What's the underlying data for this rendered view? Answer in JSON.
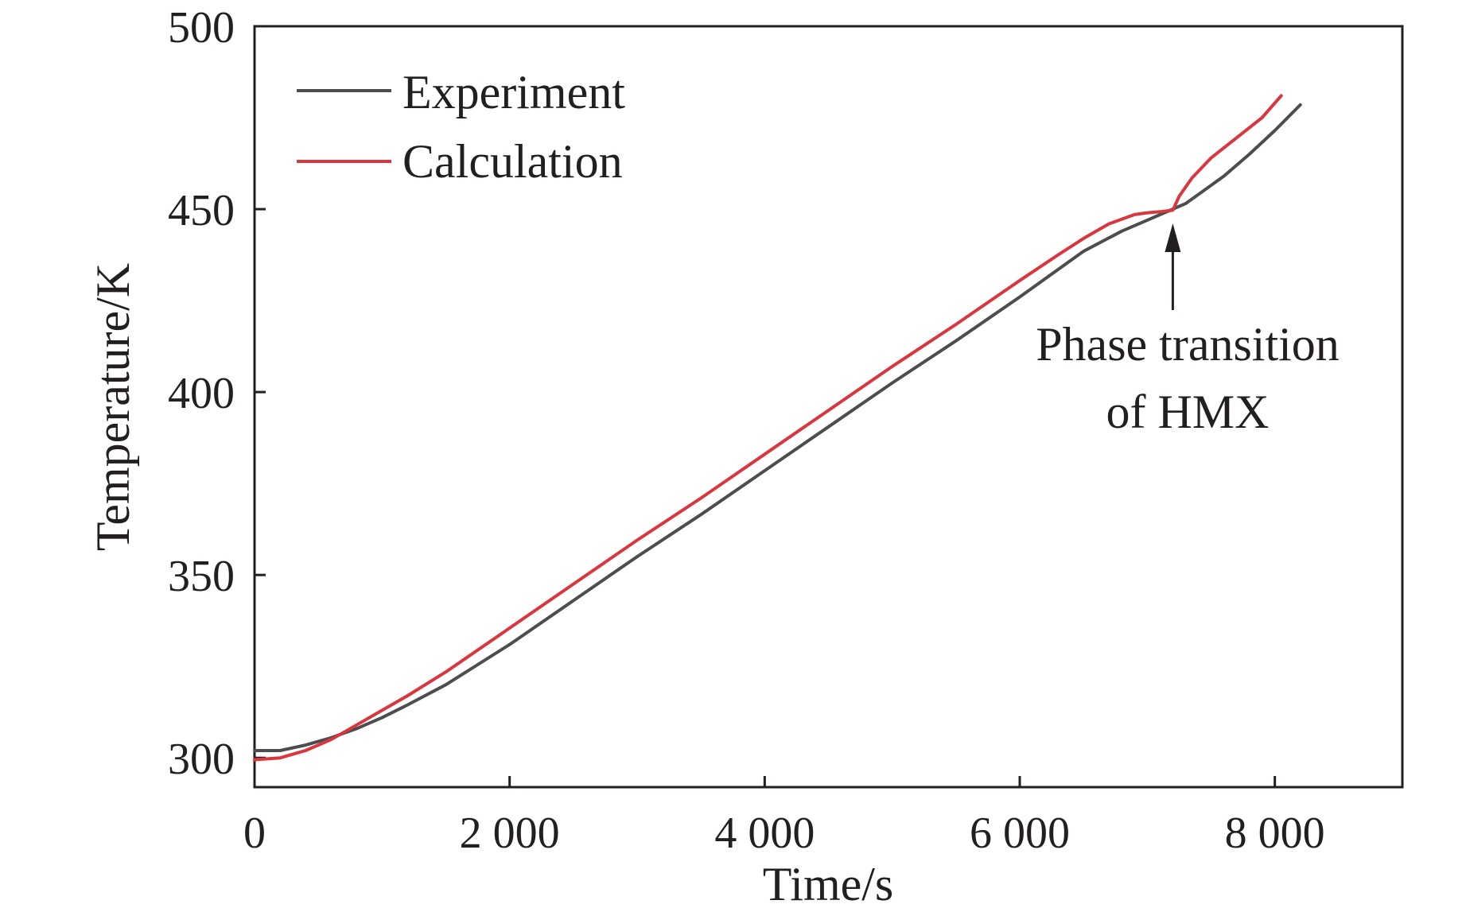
{
  "chart_data": {
    "type": "line",
    "xlabel": "Time/s",
    "ylabel": "Temperature/K",
    "xlim": [
      0,
      9000
    ],
    "ylim": [
      292,
      500
    ],
    "x_ticks": [
      {
        "value": 0,
        "label": "0"
      },
      {
        "value": 2000,
        "label": "2 000"
      },
      {
        "value": 4000,
        "label": "4 000"
      },
      {
        "value": 6000,
        "label": "6 000"
      },
      {
        "value": 8000,
        "label": "8 000"
      }
    ],
    "y_ticks": [
      {
        "value": 300,
        "label": "300"
      },
      {
        "value": 350,
        "label": "350"
      },
      {
        "value": 400,
        "label": "400"
      },
      {
        "value": 450,
        "label": "450"
      },
      {
        "value": 500,
        "label": "500"
      }
    ],
    "grid": false,
    "legend_position": "top-left",
    "series": [
      {
        "name": "Experiment",
        "color": "#4d4d4f",
        "points": [
          [
            0,
            302
          ],
          [
            200,
            302
          ],
          [
            400,
            303.5
          ],
          [
            600,
            305.5
          ],
          [
            800,
            308
          ],
          [
            1000,
            311
          ],
          [
            1200,
            314.5
          ],
          [
            1500,
            320
          ],
          [
            2000,
            331
          ],
          [
            2500,
            343
          ],
          [
            3000,
            355
          ],
          [
            3500,
            366.5
          ],
          [
            4000,
            378.5
          ],
          [
            4500,
            390.5
          ],
          [
            5000,
            402.5
          ],
          [
            5500,
            414
          ],
          [
            6000,
            426
          ],
          [
            6300,
            433.5
          ],
          [
            6500,
            438.5
          ],
          [
            6800,
            444
          ],
          [
            7000,
            447
          ],
          [
            7200,
            450
          ],
          [
            7300,
            451.5
          ],
          [
            7400,
            454
          ],
          [
            7600,
            459
          ],
          [
            7800,
            465
          ],
          [
            8000,
            471.5
          ],
          [
            8200,
            478.5
          ]
        ]
      },
      {
        "name": "Calculation",
        "color": "#d9363e",
        "points": [
          [
            0,
            299.5
          ],
          [
            200,
            300
          ],
          [
            400,
            302
          ],
          [
            600,
            305
          ],
          [
            800,
            309
          ],
          [
            1000,
            313
          ],
          [
            1200,
            317
          ],
          [
            1500,
            323.5
          ],
          [
            2000,
            335.5
          ],
          [
            2500,
            347.5
          ],
          [
            3000,
            359.5
          ],
          [
            3500,
            371
          ],
          [
            4000,
            383
          ],
          [
            4500,
            395
          ],
          [
            5000,
            407
          ],
          [
            5500,
            418.5
          ],
          [
            6000,
            430.5
          ],
          [
            6300,
            437.5
          ],
          [
            6500,
            442
          ],
          [
            6700,
            446
          ],
          [
            6900,
            448.5
          ],
          [
            7000,
            449
          ],
          [
            7100,
            449.3
          ],
          [
            7200,
            449.7
          ],
          [
            7250,
            453.5
          ],
          [
            7350,
            458.5
          ],
          [
            7500,
            464
          ],
          [
            7700,
            469.5
          ],
          [
            7900,
            475
          ],
          [
            8050,
            481
          ]
        ]
      }
    ],
    "annotations": [
      {
        "lines": [
          "Phase transition",
          "of HMX"
        ],
        "arrow_to": [
          7200,
          450
        ]
      }
    ]
  }
}
